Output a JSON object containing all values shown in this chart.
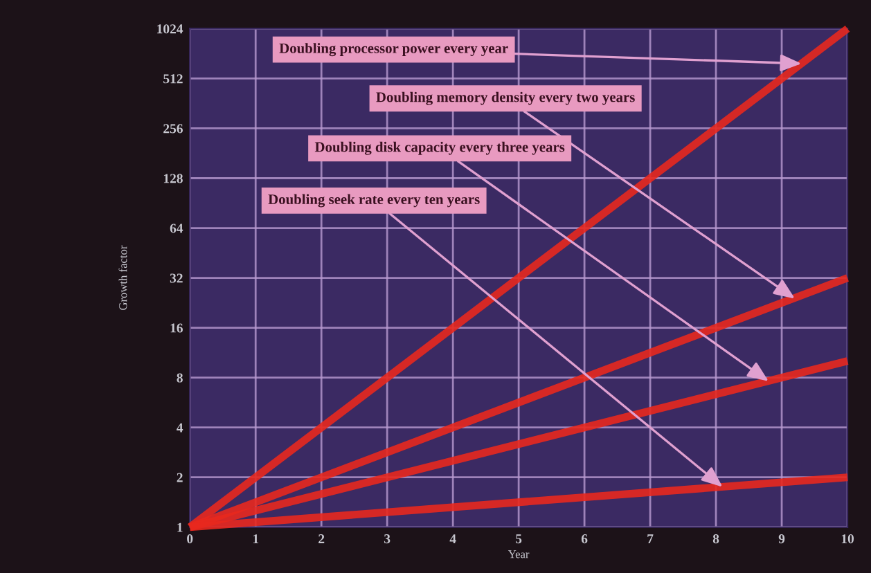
{
  "chart_data": {
    "type": "line",
    "xlabel": "Year",
    "ylabel": "Growth factor",
    "x": [
      0,
      10
    ],
    "series": [
      {
        "values": [
          1,
          1024
        ],
        "color": "#e8281e"
      },
      {
        "values": [
          1,
          32
        ],
        "color": "#e8281e"
      },
      {
        "values": [
          1,
          10.08
        ],
        "color": "#e8281e"
      },
      {
        "values": [
          1,
          2
        ],
        "color": "#e8281e"
      }
    ],
    "log": "y",
    "xlim": [
      0,
      10
    ],
    "ylim": [
      1,
      1024
    ],
    "xticks": [
      0,
      1,
      2,
      3,
      4,
      5,
      6,
      7,
      8,
      9,
      10
    ],
    "yticks": [
      1,
      2,
      4,
      8,
      16,
      32,
      64,
      128,
      256,
      512,
      1024
    ],
    "grid": true,
    "marker": "none",
    "line_style": "solid",
    "annotations": [
      {
        "text": "Doubling processor power every year",
        "x": 9.3,
        "y": 630
      },
      {
        "text": "Doubling memory density every two years",
        "x": 9.2,
        "y": 24
      },
      {
        "text": "Doubling disk capacity every three years",
        "x": 8.8,
        "y": 7.6
      },
      {
        "text": "Doubling seek rate every ten years",
        "x": 8.1,
        "y": 1.75
      }
    ]
  }
}
